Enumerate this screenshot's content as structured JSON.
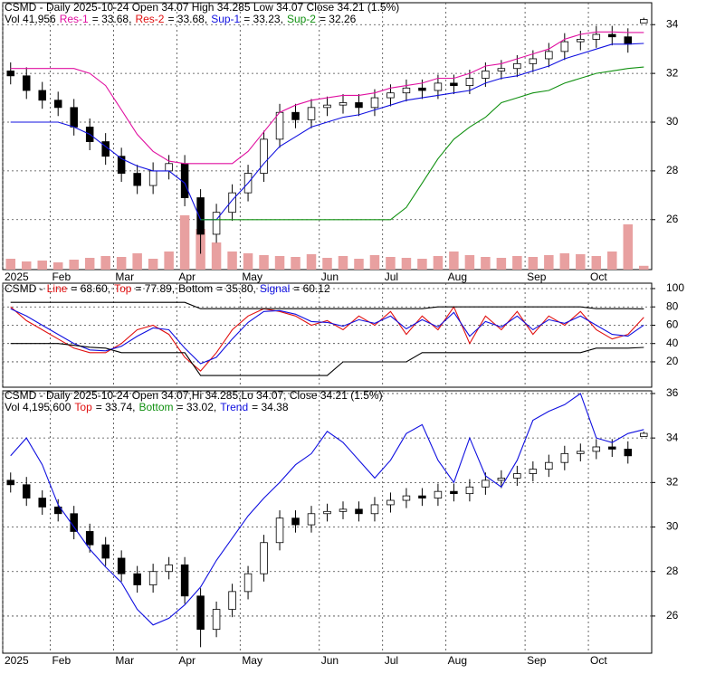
{
  "chart_data": [
    {
      "type": "ohlc",
      "title": "CSMD - Daily 2025-10-24 Open 34.07 High 34.285 Low 34.07 Close 34.21 (1.5%)",
      "header_items": [
        {
          "text": "Vol 41,956",
          "color": "#000000"
        },
        {
          "text": "Res-1",
          "color": "#e010a0"
        },
        {
          "text": "= 33.68,",
          "color": "#000000"
        },
        {
          "text": "Res-2",
          "color": "#e01010"
        },
        {
          "text": "= 33.68,",
          "color": "#000000"
        },
        {
          "text": "Sup-1",
          "color": "#1010e0"
        },
        {
          "text": "= 33.23,",
          "color": "#000000"
        },
        {
          "text": "Sup-2",
          "color": "#109010"
        },
        {
          "text": "= 32.26",
          "color": "#000000"
        }
      ],
      "categories": [
        "2025",
        null,
        null,
        "Feb",
        null,
        null,
        null,
        "Mar",
        null,
        null,
        null,
        "Apr",
        null,
        null,
        null,
        "May",
        null,
        null,
        null,
        null,
        "Jun",
        null,
        null,
        null,
        "Jul",
        null,
        null,
        null,
        "Aug",
        null,
        null,
        null,
        null,
        "Sep",
        null,
        null,
        null,
        "Oct",
        null,
        null,
        null
      ],
      "open": [
        32.1,
        31.9,
        31.3,
        30.9,
        30.6,
        29.8,
        29.2,
        28.6,
        27.9,
        27.4,
        28.0,
        28.3,
        26.9,
        25.4,
        26.3,
        27.1,
        27.9,
        29.3,
        30.4,
        30.1,
        30.6,
        30.7,
        30.8,
        30.6,
        31.0,
        31.2,
        31.4,
        31.3,
        31.6,
        31.5,
        31.8,
        32.1,
        32.2,
        32.4,
        32.6,
        32.9,
        33.3,
        33.4,
        33.6,
        33.5,
        34.07
      ],
      "high": [
        32.45,
        32.25,
        31.65,
        31.25,
        30.95,
        30.15,
        29.55,
        28.95,
        28.25,
        28.35,
        28.65,
        28.65,
        27.25,
        26.65,
        27.45,
        28.25,
        29.65,
        30.75,
        30.75,
        30.95,
        31.05,
        31.15,
        31.15,
        31.35,
        31.55,
        31.75,
        31.75,
        31.95,
        31.95,
        32.15,
        32.45,
        32.55,
        32.75,
        32.95,
        33.25,
        33.65,
        33.75,
        33.95,
        33.95,
        33.85,
        34.285
      ],
      "low": [
        31.55,
        30.95,
        30.55,
        30.25,
        29.45,
        28.85,
        28.25,
        27.55,
        27.05,
        27.05,
        27.65,
        26.55,
        24.6,
        25.05,
        25.95,
        26.75,
        27.55,
        28.95,
        29.75,
        29.75,
        30.25,
        30.35,
        30.25,
        30.25,
        30.65,
        30.85,
        30.95,
        30.95,
        31.15,
        31.15,
        31.45,
        31.75,
        31.85,
        32.05,
        32.25,
        32.55,
        32.95,
        33.05,
        33.15,
        32.85,
        34.07
      ],
      "close": [
        31.9,
        31.3,
        30.9,
        30.6,
        29.8,
        29.2,
        28.6,
        27.9,
        27.4,
        28.0,
        28.3,
        26.9,
        25.4,
        26.3,
        27.1,
        27.9,
        29.3,
        30.4,
        30.1,
        30.6,
        30.7,
        30.8,
        30.6,
        31.0,
        31.2,
        31.4,
        31.3,
        31.6,
        31.5,
        31.8,
        32.1,
        32.2,
        32.4,
        32.6,
        32.9,
        33.3,
        33.4,
        33.6,
        33.5,
        33.2,
        34.21
      ],
      "up_color": "#ffffff",
      "down_color": "#000000",
      "volume": [
        120000,
        90000,
        100000,
        80000,
        110000,
        130000,
        150000,
        140000,
        180000,
        120000,
        200000,
        600000,
        450000,
        300000,
        200000,
        180000,
        160000,
        150000,
        140000,
        170000,
        130000,
        150000,
        120000,
        160000,
        140000,
        130000,
        120000,
        150000,
        200000,
        160000,
        140000,
        130000,
        150000,
        140000,
        160000,
        180000,
        170000,
        150000,
        200000,
        500000,
        41956
      ],
      "volume_color": "#e8a0a0",
      "series": [
        {
          "color": "#e010a0",
          "values": [
            32.2,
            32.2,
            32.2,
            32.2,
            32.2,
            32.0,
            31.5,
            30.5,
            29.5,
            28.8,
            28.4,
            28.3,
            28.3,
            28.3,
            28.3,
            28.8,
            29.6,
            30.4,
            30.7,
            30.9,
            31.0,
            31.1,
            31.1,
            31.2,
            31.4,
            31.5,
            31.6,
            31.8,
            31.8,
            32.0,
            32.3,
            32.4,
            32.6,
            32.8,
            33.0,
            33.4,
            33.6,
            33.7,
            33.7,
            33.68,
            33.68
          ]
        },
        {
          "color": "#1010e0",
          "values": [
            30.0,
            30.0,
            30.0,
            30.0,
            29.8,
            29.5,
            29.0,
            28.5,
            28.2,
            28.0,
            28.0,
            27.5,
            26.0,
            26.0,
            26.8,
            27.5,
            28.3,
            29.0,
            29.4,
            29.8,
            30.0,
            30.2,
            30.3,
            30.5,
            30.7,
            30.9,
            31.0,
            31.1,
            31.2,
            31.3,
            31.6,
            31.8,
            31.9,
            32.1,
            32.3,
            32.6,
            32.8,
            33.0,
            33.2,
            33.2,
            33.23
          ]
        },
        {
          "color": "#109010",
          "values": [
            null,
            null,
            null,
            null,
            null,
            null,
            null,
            null,
            null,
            null,
            null,
            null,
            26.0,
            26.0,
            26.0,
            26.0,
            26.0,
            26.0,
            26.0,
            26.0,
            26.0,
            26.0,
            26.0,
            26.0,
            26.0,
            26.5,
            27.5,
            28.5,
            29.3,
            29.8,
            30.2,
            30.8,
            31.0,
            31.2,
            31.3,
            31.6,
            31.8,
            32.0,
            32.1,
            32.2,
            32.26
          ]
        }
      ],
      "ylim": [
        23.95,
        34.9
      ],
      "yticks": [
        26,
        28,
        30,
        32,
        34
      ],
      "grid": true
    },
    {
      "type": "line",
      "header_items": [
        {
          "text": "CSMD -",
          "color": "#000000"
        },
        {
          "text": "Line",
          "color": "#e01010"
        },
        {
          "text": "= 68.60,",
          "color": "#000000"
        },
        {
          "text": "Top",
          "color": "#e01010"
        },
        {
          "text": "= 77.89,",
          "color": "#000000"
        },
        {
          "text": "Bottom",
          "color": "#000000"
        },
        {
          "text": "= 35.80,",
          "color": "#000000"
        },
        {
          "text": "Signal",
          "color": "#1010e0"
        },
        {
          "text": "= 60.12",
          "color": "#000000"
        }
      ],
      "series": [
        {
          "color": "#e01010",
          "values": [
            80,
            65,
            55,
            45,
            35,
            30,
            30,
            40,
            55,
            60,
            50,
            25,
            10,
            30,
            55,
            70,
            78,
            75,
            70,
            60,
            65,
            55,
            70,
            60,
            75,
            50,
            70,
            55,
            80,
            40,
            70,
            55,
            75,
            50,
            70,
            60,
            75,
            55,
            45,
            50,
            68.6
          ]
        },
        {
          "color": "#1010e0",
          "values": [
            78,
            70,
            60,
            50,
            40,
            33,
            32,
            37,
            48,
            57,
            55,
            35,
            18,
            25,
            45,
            63,
            75,
            76,
            72,
            64,
            63,
            59,
            66,
            62,
            70,
            56,
            66,
            58,
            74,
            48,
            64,
            58,
            70,
            55,
            66,
            62,
            70,
            60,
            50,
            48,
            60.12
          ]
        },
        {
          "color": "#000000",
          "values": [
            85,
            85,
            85,
            85,
            85,
            85,
            85,
            85,
            85,
            85,
            85,
            85,
            78,
            78,
            78,
            78,
            78,
            78,
            78,
            78,
            78,
            78,
            78,
            78,
            78,
            78,
            78,
            80,
            80,
            80,
            80,
            80,
            80,
            80,
            80,
            80,
            80,
            78,
            78,
            78,
            77.89
          ]
        },
        {
          "color": "#000000",
          "values": [
            40,
            40,
            40,
            40,
            38,
            36,
            35,
            30,
            30,
            30,
            30,
            30,
            5,
            5,
            5,
            5,
            5,
            5,
            5,
            5,
            5,
            20,
            20,
            20,
            20,
            20,
            30,
            30,
            30,
            30,
            30,
            30,
            30,
            30,
            30,
            30,
            30,
            35,
            35,
            35,
            35.8
          ]
        }
      ],
      "ylim": [
        -7.7,
        105.9
      ],
      "yticks": [
        20,
        40,
        60,
        80,
        100
      ],
      "grid": true
    },
    {
      "type": "ohlc",
      "title": "CSMD - Daily 2025-10-24 Open 34.07,Hi 34.285,Lo 34.07, Close 34.21 (1.5%)",
      "header_items": [
        {
          "text": "Vol 4,195,600",
          "color": "#000000"
        },
        {
          "text": "Top",
          "color": "#e01010"
        },
        {
          "text": "= 33.74,",
          "color": "#000000"
        },
        {
          "text": "Bottom",
          "color": "#109010"
        },
        {
          "text": "= 33.02,",
          "color": "#000000"
        },
        {
          "text": "Trend",
          "color": "#1010e0"
        },
        {
          "text": "= 34.38",
          "color": "#000000"
        }
      ],
      "series": [
        {
          "color": "#1010e0",
          "values": [
            33.2,
            34.0,
            32.8,
            31.0,
            30.0,
            29.0,
            28.2,
            27.5,
            26.3,
            25.6,
            25.9,
            26.5,
            27.3,
            28.5,
            29.5,
            30.5,
            31.3,
            32.0,
            32.8,
            33.3,
            34.3,
            33.8,
            33.0,
            32.2,
            33.0,
            34.2,
            34.6,
            33.0,
            32.0,
            34.0,
            32.3,
            31.8,
            33.0,
            34.8,
            35.2,
            35.5,
            36.0,
            34.0,
            33.8,
            34.2,
            34.38
          ]
        }
      ],
      "ylim": [
        24.33,
        36.12
      ],
      "yticks": [
        26,
        28,
        30,
        32,
        34,
        36
      ],
      "grid": true
    }
  ]
}
